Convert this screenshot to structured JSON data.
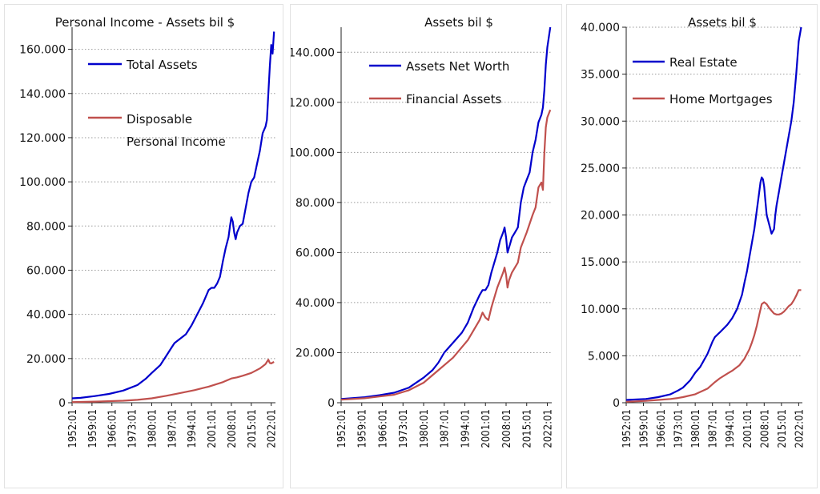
{
  "chart_data": [
    {
      "type": "line",
      "title": "Personal Income - Assets  bil $",
      "ylim": [
        0,
        170000
      ],
      "yticks": [
        "0",
        "20.000",
        "40.000",
        "60.000",
        "80.000",
        "100.000",
        "120.000",
        "140.000",
        "160.000"
      ],
      "ytick_values": [
        0,
        20000,
        40000,
        60000,
        80000,
        100000,
        120000,
        140000,
        160000
      ],
      "xlim": [
        1952,
        2023.5
      ],
      "xticks": [
        "1952:01",
        "1959:01",
        "1966:01",
        "1973:01",
        "1980:01",
        "1987:01",
        "1994:01",
        "2001:01",
        "2008:01",
        "2015:01",
        "2022:01"
      ],
      "xtick_values": [
        1952,
        1959,
        1966,
        1973,
        1980,
        1987,
        1994,
        2001,
        2008,
        2015,
        2022
      ],
      "grid": "dotted horizontal",
      "legend": "top-left",
      "series": [
        {
          "name": "Total Assets",
          "color": "#0000cc",
          "x": [
            1952,
            1955,
            1960,
            1965,
            1970,
            1973,
            1975,
            1978,
            1980,
            1983,
            1985,
            1987,
            1988,
            1990,
            1992,
            1994,
            1996,
            1998,
            2000,
            2001,
            2002,
            2003,
            2004,
            2005,
            2006,
            2007,
            2007.5,
            2008,
            2008.5,
            2009,
            2009.5,
            2010,
            2011,
            2012,
            2013,
            2014,
            2015,
            2016,
            2017,
            2018,
            2019,
            2020,
            2020.5,
            2021,
            2021.5,
            2022,
            2022.5,
            2023
          ],
          "y": [
            2000,
            2200,
            3000,
            4000,
            5500,
            7000,
            8000,
            11000,
            13500,
            17000,
            21000,
            25000,
            27000,
            29000,
            31000,
            35000,
            40000,
            45000,
            51000,
            52000,
            52000,
            54000,
            57000,
            64000,
            70000,
            75000,
            80000,
            84000,
            82000,
            77000,
            74000,
            77000,
            80000,
            81000,
            88000,
            95000,
            100000,
            102000,
            108000,
            114000,
            122000,
            125000,
            128000,
            140000,
            152000,
            162000,
            158000,
            168000
          ]
        },
        {
          "name": "Disposable Personal Income",
          "color": "#c0504d",
          "x": [
            1952,
            1960,
            1970,
            1975,
            1980,
            1985,
            1990,
            1995,
            2000,
            2005,
            2008,
            2010,
            2012,
            2015,
            2018,
            2020,
            2020.5,
            2021,
            2021.5,
            2022,
            2023
          ],
          "y": [
            300,
            500,
            900,
            1300,
            2000,
            3100,
            4400,
            5700,
            7300,
            9300,
            11000,
            11500,
            12200,
            13500,
            15500,
            17500,
            18500,
            19500,
            18000,
            17800,
            18500
          ]
        }
      ]
    },
    {
      "type": "line",
      "title": "Assets bil $",
      "ylim": [
        0,
        150000
      ],
      "yticks": [
        "0",
        "20.000",
        "40.000",
        "60.000",
        "80.000",
        "100.000",
        "120.000",
        "140.000"
      ],
      "ytick_values": [
        0,
        20000,
        40000,
        60000,
        80000,
        100000,
        120000,
        140000
      ],
      "xlim": [
        1952,
        2023.5
      ],
      "xticks": [
        "1952:01",
        "1959:01",
        "1966:01",
        "1973:01",
        "1980:01",
        "1987:01",
        "1994:01",
        "2001:01",
        "2008:01",
        "2015:01",
        "2022:01"
      ],
      "xtick_values": [
        1952,
        1959,
        1966,
        1973,
        1980,
        1987,
        1994,
        2001,
        2008,
        2015,
        2022
      ],
      "grid": "dotted horizontal",
      "legend": "top-left",
      "series": [
        {
          "name": "Assets Net Worth",
          "color": "#0000cc",
          "x": [
            1952,
            1960,
            1965,
            1970,
            1975,
            1980,
            1983,
            1985,
            1987,
            1990,
            1993,
            1995,
            1997,
            1999,
            2000,
            2001,
            2002,
            2003,
            2005,
            2006,
            2007,
            2007.5,
            2008,
            2008.5,
            2009,
            2009.5,
            2010,
            2011,
            2012,
            2013,
            2014,
            2015,
            2016,
            2017,
            2018,
            2019,
            2020,
            2020.5,
            2021,
            2021.5,
            2022,
            2023
          ],
          "y": [
            1500,
            2200,
            3000,
            4000,
            6000,
            10000,
            13000,
            16000,
            20000,
            24000,
            28000,
            32000,
            38000,
            43000,
            45000,
            45000,
            47000,
            52000,
            60000,
            65000,
            68000,
            70000,
            66000,
            60000,
            62000,
            64000,
            66000,
            68000,
            70000,
            80000,
            86000,
            89000,
            92000,
            100000,
            105000,
            112000,
            115000,
            118000,
            125000,
            135000,
            142000,
            150000
          ]
        },
        {
          "name": "Financial  Assets",
          "color": "#c0504d",
          "x": [
            1952,
            1960,
            1965,
            1970,
            1975,
            1980,
            1985,
            1990,
            1995,
            1999,
            2000,
            2001,
            2002,
            2003,
            2005,
            2007,
            2007.5,
            2008,
            2008.5,
            2009,
            2010,
            2012,
            2013,
            2015,
            2017,
            2018,
            2019,
            2020,
            2020.5,
            2021,
            2021.5,
            2022,
            2023
          ],
          "y": [
            1200,
            1800,
            2500,
            3200,
            5000,
            8000,
            13000,
            18000,
            25000,
            33000,
            36000,
            34000,
            33000,
            38000,
            46000,
            52000,
            54000,
            51000,
            46000,
            49000,
            52000,
            56000,
            62000,
            68000,
            75000,
            78000,
            86000,
            88000,
            85000,
            100000,
            110000,
            114000,
            117000
          ]
        }
      ]
    },
    {
      "type": "line",
      "title": "Assets bil $",
      "ylim": [
        0,
        40000
      ],
      "yticks": [
        "0",
        "5.000",
        "10.000",
        "15.000",
        "20.000",
        "25.000",
        "30.000",
        "35.000",
        "40.000"
      ],
      "ytick_values": [
        0,
        5000,
        10000,
        15000,
        20000,
        25000,
        30000,
        35000,
        40000
      ],
      "xlim": [
        1952,
        2023.5
      ],
      "xticks": [
        "1952:01",
        "1959:01",
        "1966:01",
        "1973:01",
        "1980:01",
        "1987:01",
        "1994:01",
        "2001:01",
        "2008:01",
        "2015:01",
        "2022:01"
      ],
      "xtick_values": [
        1952,
        1959,
        1966,
        1973,
        1980,
        1987,
        1994,
        2001,
        2008,
        2015,
        2022
      ],
      "grid": "dotted horizontal",
      "legend": "top-left",
      "series": [
        {
          "name": "Real Estate",
          "color": "#0000cc",
          "x": [
            1952,
            1960,
            1965,
            1970,
            1973,
            1975,
            1978,
            1980,
            1982,
            1985,
            1987,
            1988,
            1990,
            1993,
            1995,
            1997,
            1999,
            2000,
            2001,
            2002,
            2003,
            2004,
            2005,
            2006,
            2006.5,
            2007,
            2007.5,
            2008,
            2008.5,
            2009,
            2010,
            2011,
            2012,
            2012.5,
            2013,
            2014,
            2015,
            2016,
            2017,
            2018,
            2019,
            2020,
            2021,
            2022,
            2023
          ],
          "y": [
            300,
            400,
            600,
            900,
            1300,
            1600,
            2400,
            3200,
            3800,
            5200,
            6500,
            7000,
            7500,
            8300,
            9000,
            10000,
            11500,
            12800,
            14000,
            15500,
            17000,
            18500,
            20500,
            22500,
            23500,
            24000,
            23800,
            23000,
            21500,
            20000,
            19000,
            18000,
            18500,
            20000,
            21000,
            22500,
            24000,
            25500,
            27000,
            28500,
            30000,
            32000,
            35000,
            38500,
            40000
          ]
        },
        {
          "name": "Home Mortgages",
          "color": "#c0504d",
          "x": [
            1952,
            1960,
            1965,
            1970,
            1973,
            1975,
            1980,
            1985,
            1988,
            1990,
            1993,
            1995,
            1998,
            2000,
            2002,
            2003,
            2004,
            2005,
            2006,
            2007,
            2008,
            2009,
            2010,
            2011,
            2012,
            2013,
            2014,
            2015,
            2016,
            2017,
            2018,
            2019,
            2020,
            2021,
            2022,
            2023
          ],
          "y": [
            100,
            200,
            300,
            400,
            500,
            600,
            900,
            1500,
            2200,
            2600,
            3100,
            3400,
            4000,
            4700,
            5700,
            6400,
            7200,
            8200,
            9400,
            10500,
            10700,
            10500,
            10100,
            9800,
            9500,
            9400,
            9400,
            9500,
            9700,
            10000,
            10300,
            10500,
            10900,
            11400,
            12000,
            12000
          ]
        }
      ]
    }
  ]
}
